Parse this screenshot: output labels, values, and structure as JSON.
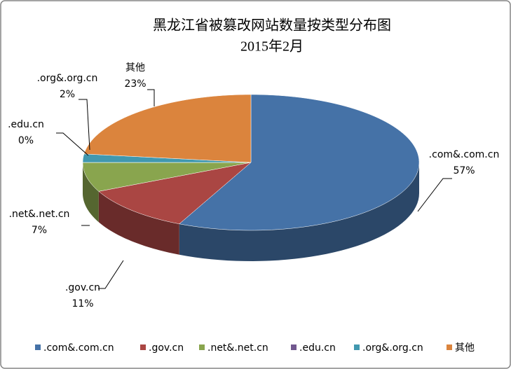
{
  "chart_data": {
    "type": "pie",
    "title": "黑龙江省被篡改网站数量按类型分布图",
    "subtitle": "2015年2月",
    "categories": [
      ".com&.com.cn",
      ".gov.cn",
      ".net&.net.cn",
      ".edu.cn",
      ".org&.org.cn",
      "其他"
    ],
    "values": [
      57,
      11,
      7,
      0,
      2,
      23
    ],
    "value_labels": [
      "57%",
      "11%",
      "7%",
      "0%",
      "2%",
      "23%"
    ],
    "colors": [
      "#4572a7",
      "#aa4643",
      "#89a54e",
      "#71588f",
      "#4198af",
      "#db843d"
    ],
    "legend": "bottom"
  }
}
